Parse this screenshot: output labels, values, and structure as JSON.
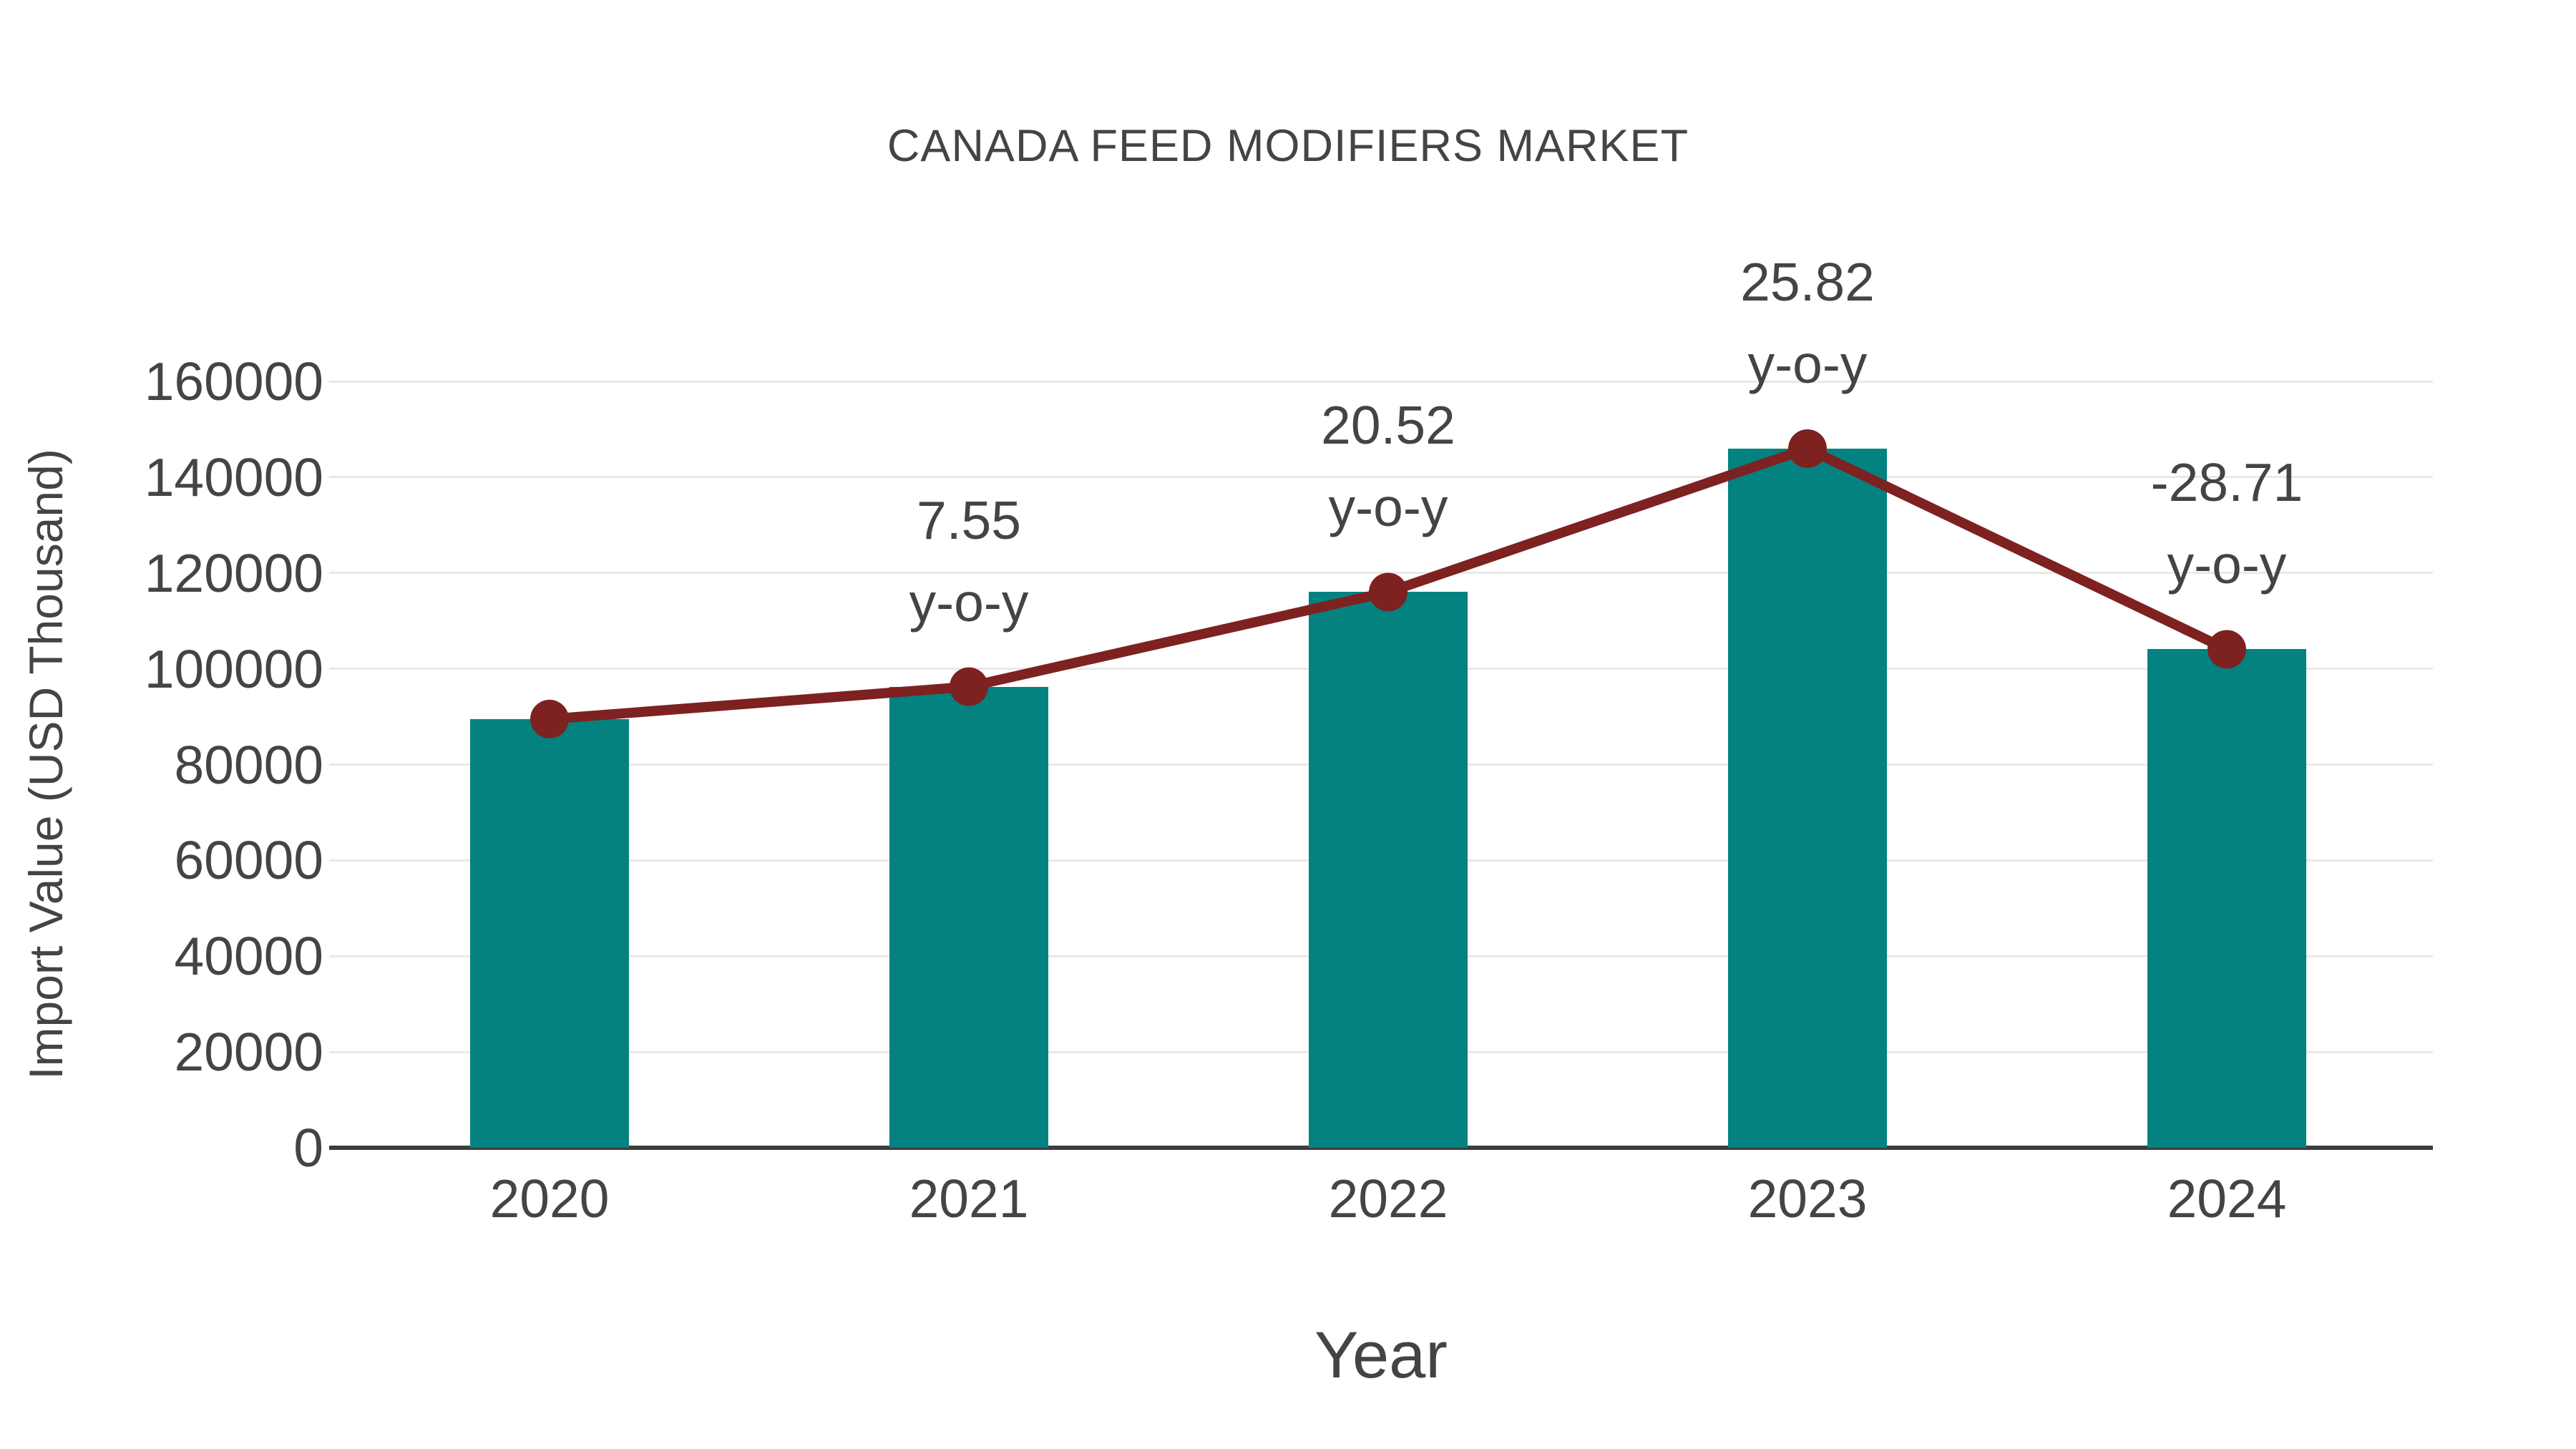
{
  "chart_data": {
    "type": "bar",
    "title": "CANADA FEED MODIFIERS MARKET",
    "xlabel": "Year",
    "ylabel": "Import Value (USD Thousand)",
    "categories": [
      "2020",
      "2021",
      "2022",
      "2023",
      "2024"
    ],
    "series": [
      {
        "name": "Import Value (USD Thousand)",
        "type": "bar",
        "values": [
          89500,
          96260,
          116010,
          145960,
          104060
        ]
      },
      {
        "name": "y-o-y change",
        "type": "line",
        "values": [
          89500,
          96260,
          116010,
          145960,
          104060
        ]
      }
    ],
    "yoy_percent": [
      null,
      7.55,
      20.52,
      25.82,
      -28.71
    ],
    "yoy_labels": [
      "",
      "7.55",
      "20.52",
      "25.82",
      "-28.71"
    ],
    "yoy_suffix": "y-o-y",
    "ylim": [
      0,
      160000
    ],
    "ytick_labels": [
      "0",
      "20000",
      "40000",
      "60000",
      "80000",
      "100000",
      "120000",
      "140000",
      "160000"
    ],
    "grid": "horizontal",
    "legend": "none",
    "marker": "circle"
  },
  "colors": {
    "bar": "#038280",
    "line": "#7E2121",
    "marker": "#7E2121",
    "grid": "#E9E9E9",
    "axis": "#3D3D3D",
    "text": "#444444"
  }
}
